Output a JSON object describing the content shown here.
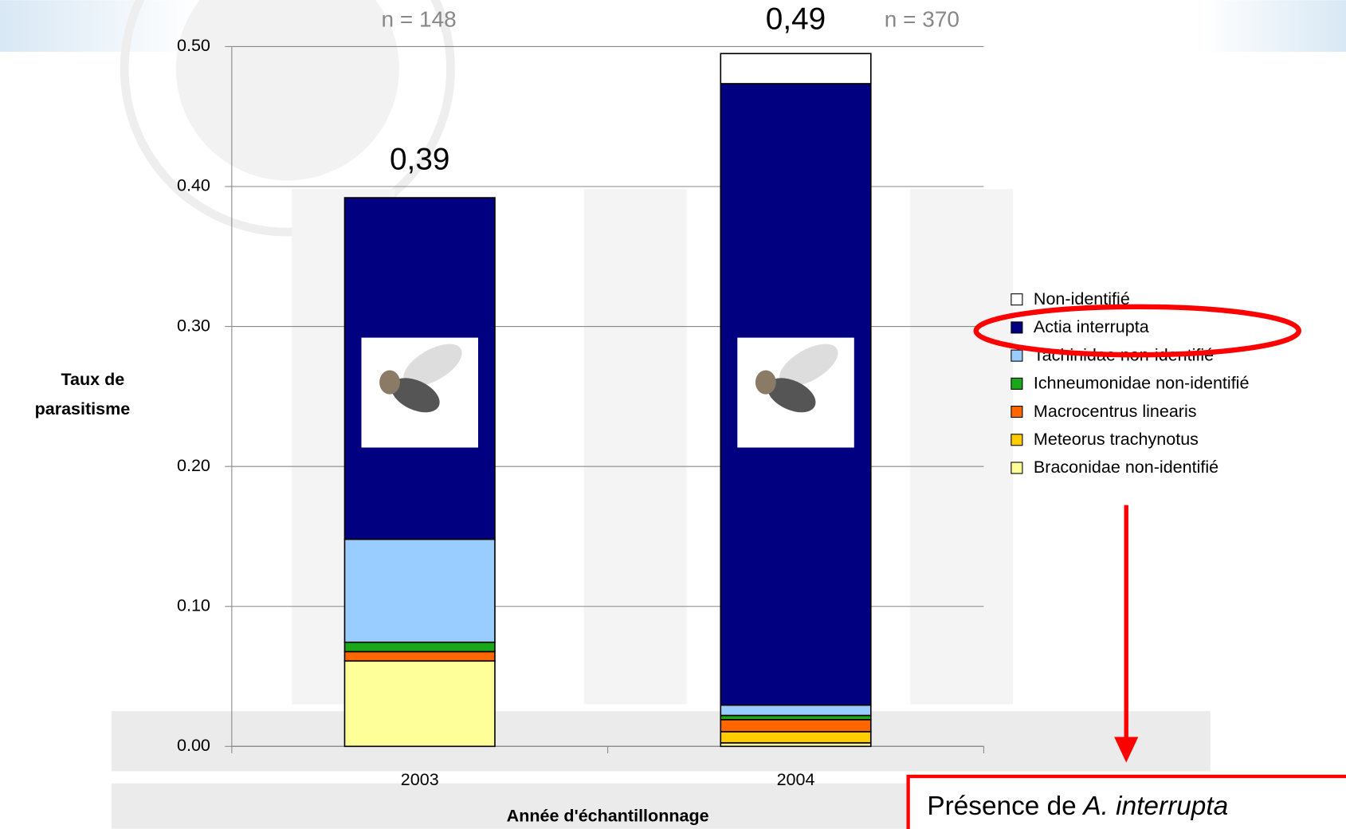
{
  "chart_data": {
    "type": "stacked_bar",
    "xlabel": "Année d'échantillonnage",
    "ylabel": [
      "Taux de",
      "parasitisme"
    ],
    "categories": [
      "2003",
      "2004"
    ],
    "series": [
      {
        "name": "Braconidae non-identifié",
        "color": "#ffff99",
        "values": [
          0.061,
          0.0025
        ]
      },
      {
        "name": "Meteorus trachynotus",
        "color": "#ffcc00",
        "values": [
          0,
          0.008
        ]
      },
      {
        "name": "Macrocentrus linearis",
        "color": "#ff6600",
        "values": [
          0.0067,
          0.0086
        ]
      },
      {
        "name": "Ichneumonidae non-identifié",
        "color": "#1aa81a",
        "values": [
          0.0067,
          0.003
        ]
      },
      {
        "name": "Tachinidae non-identifié",
        "color": "#99ccff",
        "values": [
          0.0736,
          0.0074
        ]
      },
      {
        "name": "Actia interrupta",
        "color": "#000080",
        "values": [
          0.244,
          0.444
        ]
      },
      {
        "name": "Non-identifié",
        "color": "#ffffff",
        "values": [
          0,
          0.0215
        ]
      }
    ],
    "totals": {
      "values": [
        0.39,
        0.49
      ],
      "value_labels": [
        "0,39",
        "0,49"
      ]
    },
    "sample_sizes": [
      "n = 148",
      "n = 370"
    ],
    "ylim": [
      0,
      0.5
    ],
    "yticks": [
      {
        "value": 0,
        "label": "0.00"
      },
      {
        "value": 0.1,
        "label": "0.10"
      },
      {
        "value": 0.2,
        "label": "0.20"
      },
      {
        "value": 0.3,
        "label": "0.30"
      },
      {
        "value": 0.4,
        "label": "0.40"
      },
      {
        "value": 0.5,
        "label": "0.50"
      }
    ],
    "grid": true,
    "legend": "right",
    "highlighted_series": "Actia interrupta",
    "annotation": [
      "Présence de",
      "A. interrupta"
    ]
  }
}
